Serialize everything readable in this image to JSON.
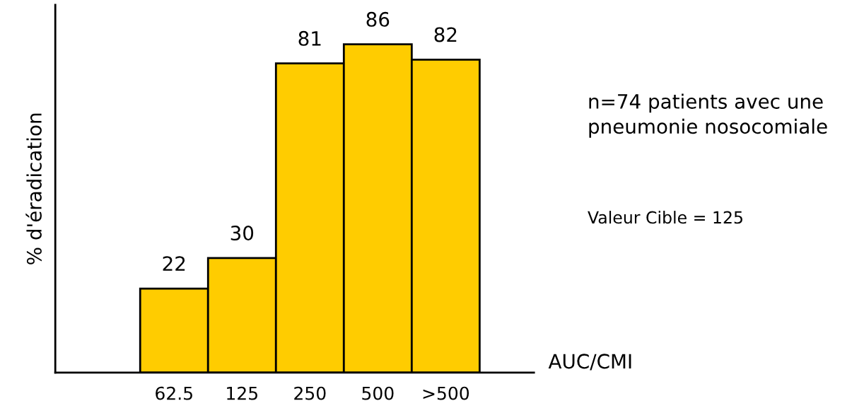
{
  "chart_data": {
    "type": "bar",
    "categories": [
      null,
      "62.5",
      "125",
      "250",
      "500",
      ">500"
    ],
    "values": [
      null,
      22,
      30,
      81,
      86,
      82
    ],
    "color": "#ffcc00",
    "data_labels": true,
    "relative": false,
    "xlabel": "AUC/CMI",
    "ylabel": "% d'éradication",
    "annotations": [
      "n=74 patients avec une\npneumonie nosocomiale",
      "Valeur Cible = 125"
    ]
  }
}
